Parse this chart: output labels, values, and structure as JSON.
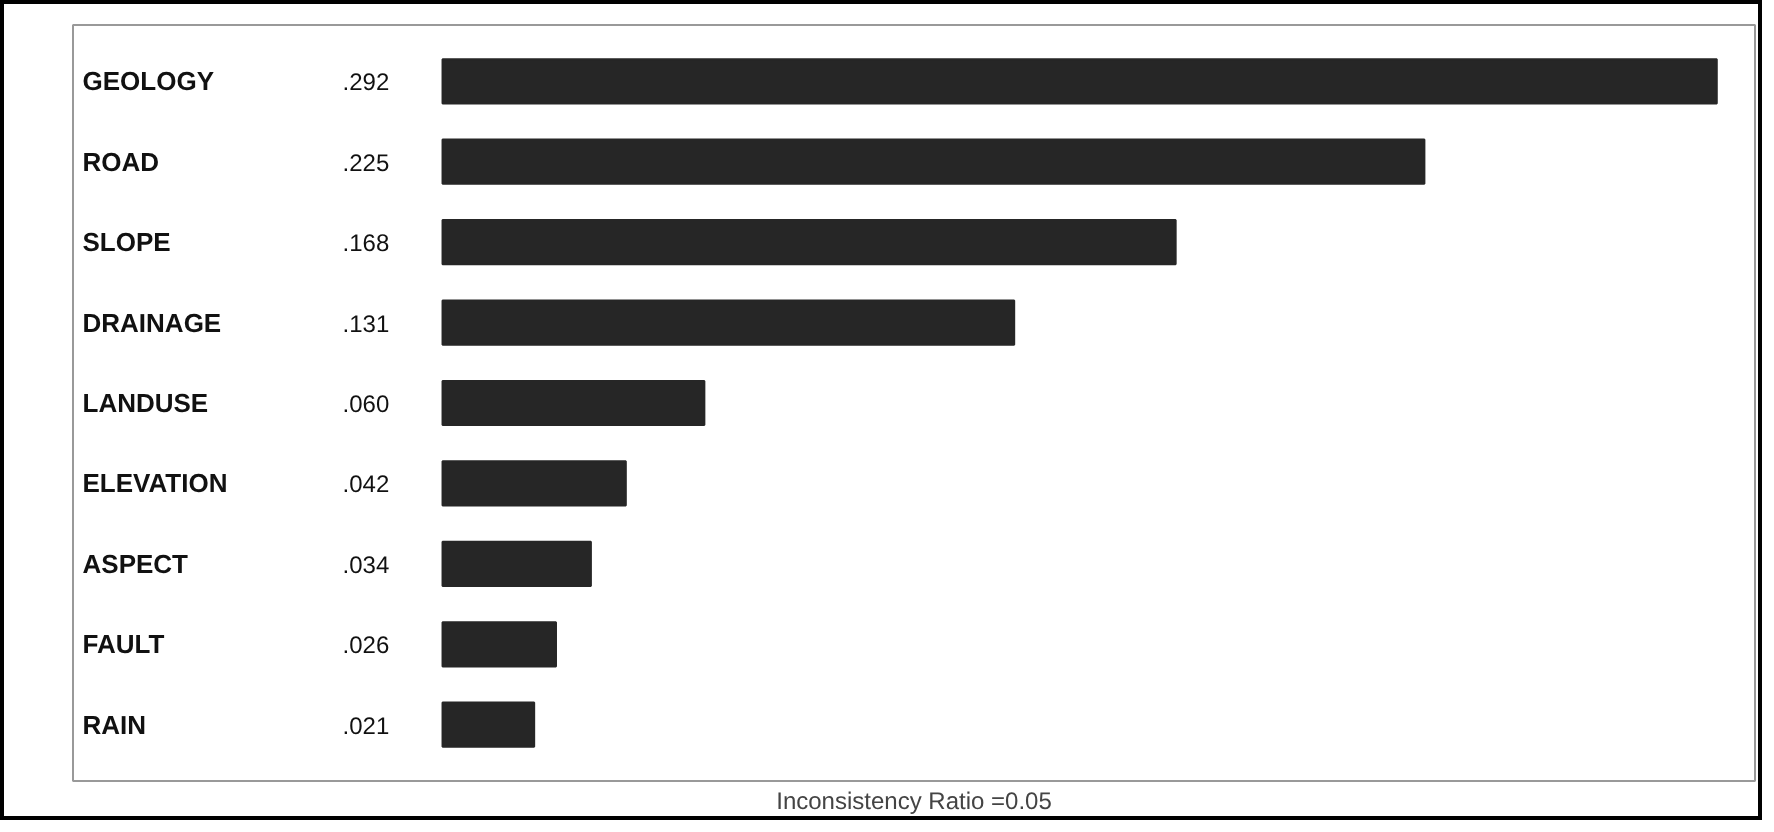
{
  "chart_data": {
    "type": "bar",
    "orientation": "horizontal",
    "categories": [
      "GEOLOGY",
      "ROAD",
      "SLOPE",
      "DRAINAGE",
      "LANDUSE",
      "ELEVATION",
      "ASPECT",
      "FAULT",
      "RAIN"
    ],
    "values": [
      0.292,
      0.225,
      0.168,
      0.131,
      0.06,
      0.042,
      0.034,
      0.026,
      0.021
    ],
    "value_labels": [
      ".292",
      ".225",
      ".168",
      ".131",
      ".060",
      ".042",
      ".034",
      ".026",
      ".021"
    ],
    "color": "#262626",
    "annotations": [
      "Inconsistency Ratio =0.05"
    ]
  }
}
